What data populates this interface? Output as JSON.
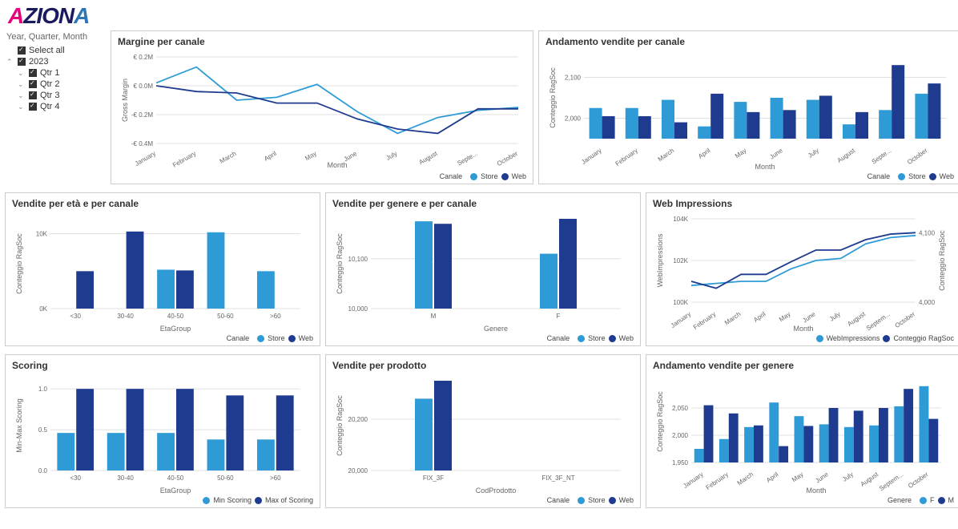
{
  "logo": {
    "part1": "A",
    "part2": "ZION",
    "part3": "A"
  },
  "colors": {
    "store": "#2e9bd6",
    "web": "#1f3b8f",
    "grid": "#e0e0e0",
    "axis": "#666666"
  },
  "filter": {
    "title": "Year, Quarter, Month",
    "selectAll": "Select all",
    "year": "2023",
    "quarters": [
      "Qtr 1",
      "Qtr 2",
      "Qtr 3",
      "Qtr 4"
    ]
  },
  "months": [
    "January",
    "February",
    "March",
    "April",
    "May",
    "June",
    "July",
    "August",
    "Septe...",
    "October"
  ],
  "monthsShort": [
    "January",
    "February",
    "March",
    "April",
    "May",
    "June",
    "July",
    "August",
    "Septem...",
    "October"
  ],
  "margine": {
    "title": "Margine per canale",
    "ylabel": "Gross Margin",
    "xlabel": "Month",
    "ylim": [
      -0.4,
      0.2
    ],
    "yticks": [
      -0.4,
      -0.2,
      0.0,
      0.2
    ],
    "ytickLabels": [
      "-€ 0.4M",
      "-€ 0.2M",
      "€ 0.0M",
      "€ 0.2M"
    ],
    "store": [
      0.02,
      0.13,
      -0.1,
      -0.08,
      0.01,
      -0.18,
      -0.33,
      -0.22,
      -0.17,
      -0.15
    ],
    "web": [
      0.0,
      -0.04,
      -0.05,
      -0.12,
      -0.12,
      -0.23,
      -0.3,
      -0.33,
      -0.16,
      -0.16
    ],
    "legend": {
      "label": "Canale",
      "items": [
        "Store",
        "Web"
      ]
    }
  },
  "andamentoCanale": {
    "title": "Andamento vendite per canale",
    "ylabel": "Conteggio RagSoc",
    "xlabel": "Month",
    "ylim": [
      1950,
      2150
    ],
    "yticks": [
      2000,
      2100
    ],
    "store": [
      2025,
      2025,
      2045,
      1980,
      2040,
      2050,
      2045,
      1985,
      2020,
      2060
    ],
    "web": [
      2005,
      2005,
      1990,
      2060,
      2015,
      2020,
      2055,
      2015,
      2130,
      2085
    ],
    "legend": {
      "label": "Canale",
      "items": [
        "Store",
        "Web"
      ]
    }
  },
  "venditeEta": {
    "title": "Vendite per età e per canale",
    "ylabel": "Conteggio RagSoc",
    "xlabel": "EtaGroup",
    "categories": [
      "<30",
      "30-40",
      "40-50",
      "50-60",
      ">60"
    ],
    "ylim": [
      0,
      12000
    ],
    "yticks": [
      0,
      10000
    ],
    "ytickLabels": [
      "0K",
      "10K"
    ],
    "store": [
      0,
      0,
      5200,
      10200,
      5000
    ],
    "web": [
      5000,
      10300,
      5100,
      0,
      0
    ],
    "legend": {
      "label": "Canale",
      "items": [
        "Store",
        "Web"
      ]
    }
  },
  "venditeGenere": {
    "title": "Vendite per genere e per canale",
    "ylabel": "Conteggio RagSoc",
    "xlabel": "Genere",
    "categories": [
      "M",
      "F"
    ],
    "ylim": [
      10000,
      10180
    ],
    "yticks": [
      10000,
      10100
    ],
    "ytickLabels": [
      "10,000",
      "10,100"
    ],
    "store": [
      10175,
      10110
    ],
    "web": [
      10170,
      10180
    ],
    "legend": {
      "label": "Canale",
      "items": [
        "Store",
        "Web"
      ]
    }
  },
  "webImpressions": {
    "title": "Web Impressions",
    "ylabel": "WebImpressions",
    "ylabel2": "Conteggio RagSoc",
    "xlabel": "Month",
    "ylim": [
      100000,
      104000
    ],
    "yticks": [
      100000,
      102000,
      104000
    ],
    "ytickLabels": [
      "100K",
      "102K",
      "104K"
    ],
    "ylim2": [
      4000,
      4120
    ],
    "yticks2": [
      4000,
      4100
    ],
    "ytickLabels2": [
      "4,000",
      "4,100"
    ],
    "impressions": [
      100800,
      100900,
      101000,
      101000,
      101600,
      102000,
      102100,
      102800,
      103100,
      103200
    ],
    "conteggio": [
      4030,
      4020,
      4040,
      4040,
      4058,
      4075,
      4075,
      4090,
      4098,
      4100
    ],
    "legend": {
      "items": [
        "WebImpressions",
        "Conteggio RagSoc"
      ]
    }
  },
  "scoring": {
    "title": "Scoring",
    "ylabel": "Min-Max Scoring",
    "xlabel": "EtaGroup",
    "categories": [
      "<30",
      "30-40",
      "40-50",
      "50-60",
      ">60"
    ],
    "ylim": [
      0,
      1.1
    ],
    "yticks": [
      0.0,
      0.5,
      1.0
    ],
    "min": [
      0.46,
      0.46,
      0.46,
      0.38,
      0.38
    ],
    "max": [
      1.0,
      1.0,
      1.0,
      0.92,
      0.92
    ],
    "legend": {
      "items": [
        "Min Scoring",
        "Max of Scoring"
      ]
    }
  },
  "venditeProdotto": {
    "title": "Vendite per prodotto",
    "ylabel": "Conteggio RagSoc",
    "xlabel": "CodProdotto",
    "categories": [
      "FIX_3F",
      "FIX_3F_NT"
    ],
    "ylim": [
      20000,
      20350
    ],
    "yticks": [
      20000,
      20200
    ],
    "ytickLabels": [
      "20,000",
      "20,200"
    ],
    "store": [
      20280,
      0
    ],
    "web": [
      20350,
      0
    ],
    "legend": {
      "label": "Canale",
      "items": [
        "Store",
        "Web"
      ]
    }
  },
  "andamentoGenere": {
    "title": "Andamento vendite per genere",
    "ylabel": "Conteggio RagSoc",
    "xlabel": "Month",
    "ylim": [
      1950,
      2100
    ],
    "yticks": [
      1950,
      2000,
      2050
    ],
    "ytickLabels": [
      "1,950",
      "2,000",
      "2,050"
    ],
    "f": [
      1975,
      1993,
      2015,
      2060,
      2035,
      2020,
      2015,
      2018,
      2053,
      2090
    ],
    "m": [
      2055,
      2040,
      2018,
      1980,
      2017,
      2050,
      2045,
      2050,
      2085,
      2030
    ],
    "legend": {
      "label": "Genere",
      "items": [
        "F",
        "M"
      ]
    }
  }
}
